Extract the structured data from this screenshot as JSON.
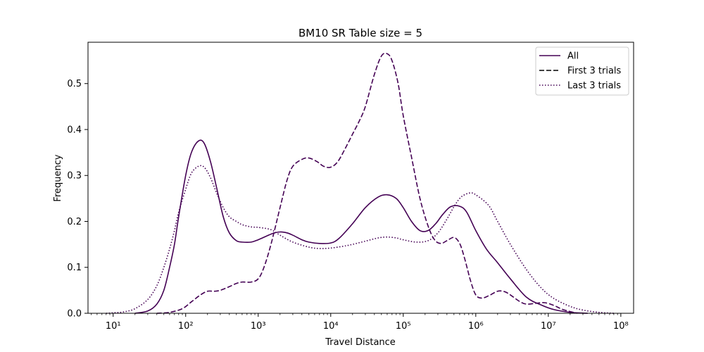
{
  "chart_data": {
    "type": "line",
    "title": "BM10 SR Table size = 5",
    "xlabel": "Travel Distance",
    "ylabel": "Frequency",
    "xscale": "log",
    "xlim": [
      4.5,
      150000000
    ],
    "ylim": [
      0,
      0.59
    ],
    "grid": false,
    "legend_position": "top-right",
    "line_color": "#440154",
    "x_ticks": [
      {
        "value": 10,
        "label": "10¹"
      },
      {
        "value": 100,
        "label": "10²"
      },
      {
        "value": 1000,
        "label": "10³"
      },
      {
        "value": 10000,
        "label": "10⁴"
      },
      {
        "value": 100000,
        "label": "10⁵"
      },
      {
        "value": 1000000,
        "label": "10⁶"
      },
      {
        "value": 10000000,
        "label": "10⁷"
      },
      {
        "value": 100000000,
        "label": "10⁸"
      }
    ],
    "y_ticks": [
      {
        "value": 0.0,
        "label": "0.0"
      },
      {
        "value": 0.1,
        "label": "0.1"
      },
      {
        "value": 0.2,
        "label": "0.2"
      },
      {
        "value": 0.3,
        "label": "0.3"
      },
      {
        "value": 0.4,
        "label": "0.4"
      },
      {
        "value": 0.5,
        "label": "0.5"
      }
    ],
    "series": [
      {
        "name": "All",
        "dash": "solid",
        "x": [
          20,
          30,
          40,
          50,
          60,
          70,
          80,
          100,
          120,
          150,
          180,
          220,
          270,
          330,
          400,
          500,
          600,
          800,
          1000,
          1300,
          1600,
          2000,
          2500,
          3000,
          4000,
          5000,
          7000,
          10000,
          13000,
          20000,
          30000,
          45000,
          60000,
          80000,
          100000,
          130000,
          170000,
          220000,
          280000,
          350000,
          450000,
          600000,
          750000,
          1000000,
          1400000,
          2000000,
          3000000,
          5000000,
          8000000,
          12000000,
          20000000,
          35000000
        ],
        "y": [
          0.0,
          0.005,
          0.02,
          0.05,
          0.1,
          0.15,
          0.21,
          0.3,
          0.35,
          0.375,
          0.37,
          0.33,
          0.27,
          0.21,
          0.175,
          0.158,
          0.155,
          0.155,
          0.16,
          0.168,
          0.174,
          0.177,
          0.175,
          0.17,
          0.16,
          0.155,
          0.152,
          0.153,
          0.163,
          0.195,
          0.23,
          0.253,
          0.258,
          0.25,
          0.23,
          0.2,
          0.18,
          0.18,
          0.195,
          0.215,
          0.232,
          0.233,
          0.22,
          0.18,
          0.14,
          0.11,
          0.075,
          0.035,
          0.018,
          0.008,
          0.002,
          0.0
        ]
      },
      {
        "name": "First 3 trials",
        "dash": "dashed",
        "x": [
          40,
          60,
          90,
          120,
          160,
          200,
          250,
          300,
          400,
          500,
          600,
          800,
          1000,
          1200,
          1500,
          2000,
          2500,
          3000,
          4000,
          5000,
          6500,
          8000,
          10000,
          12500,
          16000,
          20000,
          25000,
          30000,
          40000,
          50000,
          60000,
          70000,
          85000,
          100000,
          130000,
          170000,
          220000,
          270000,
          330000,
          400000,
          500000,
          600000,
          700000,
          850000,
          1000000,
          1200000,
          1500000,
          2000000,
          2500000,
          3000000,
          4000000,
          5000000,
          7000000,
          9000000,
          12000000,
          16000000,
          25000000
        ],
        "y": [
          0.0,
          0.002,
          0.01,
          0.025,
          0.04,
          0.048,
          0.048,
          0.05,
          0.058,
          0.065,
          0.068,
          0.068,
          0.075,
          0.1,
          0.15,
          0.23,
          0.29,
          0.32,
          0.335,
          0.338,
          0.33,
          0.32,
          0.318,
          0.33,
          0.36,
          0.39,
          0.42,
          0.45,
          0.52,
          0.56,
          0.565,
          0.55,
          0.5,
          0.43,
          0.34,
          0.25,
          0.19,
          0.16,
          0.152,
          0.158,
          0.165,
          0.152,
          0.12,
          0.07,
          0.04,
          0.033,
          0.038,
          0.048,
          0.047,
          0.04,
          0.026,
          0.02,
          0.022,
          0.023,
          0.017,
          0.008,
          0.0
        ]
      },
      {
        "name": "Last 3 trials",
        "dash": "dotted",
        "x": [
          8,
          10,
          14,
          20,
          30,
          40,
          50,
          60,
          70,
          80,
          100,
          120,
          150,
          180,
          220,
          270,
          330,
          400,
          500,
          600,
          800,
          1000,
          1500,
          2000,
          3000,
          5000,
          7000,
          10000,
          15000,
          20000,
          30000,
          45000,
          60000,
          80000,
          100000,
          150000,
          220000,
          300000,
          400000,
          500000,
          600000,
          700000,
          850000,
          1000000,
          1500000,
          2000000,
          3000000,
          5000000,
          8000000,
          12000000,
          20000000,
          30000000,
          50000000,
          80000000
        ],
        "y": [
          0.0,
          0.001,
          0.003,
          0.01,
          0.03,
          0.06,
          0.1,
          0.14,
          0.18,
          0.22,
          0.27,
          0.305,
          0.32,
          0.318,
          0.295,
          0.26,
          0.23,
          0.21,
          0.2,
          0.193,
          0.188,
          0.187,
          0.182,
          0.17,
          0.155,
          0.144,
          0.141,
          0.142,
          0.146,
          0.15,
          0.157,
          0.164,
          0.166,
          0.164,
          0.16,
          0.155,
          0.158,
          0.175,
          0.205,
          0.232,
          0.25,
          0.258,
          0.262,
          0.258,
          0.235,
          0.2,
          0.15,
          0.095,
          0.055,
          0.032,
          0.015,
          0.007,
          0.002,
          0.0
        ]
      }
    ]
  }
}
